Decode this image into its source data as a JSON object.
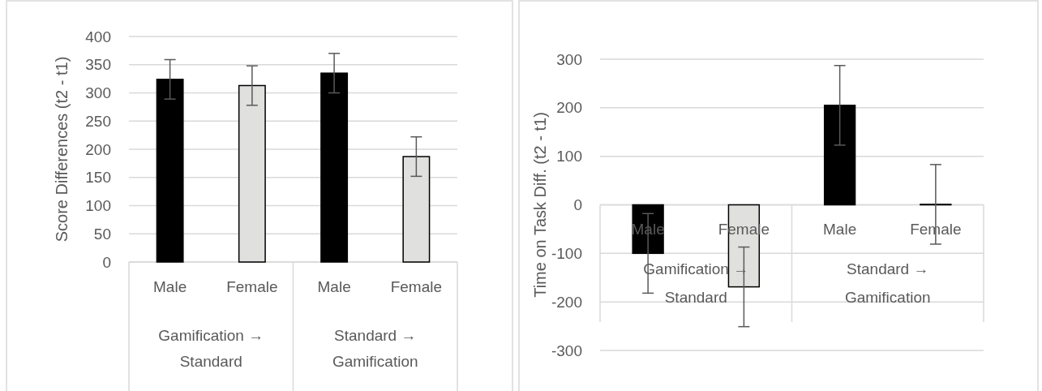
{
  "chart_data": [
    {
      "type": "bar",
      "ylabel": "Score Differences (t2 - t1)",
      "categories": [
        "Male",
        "Female",
        "Male",
        "Female"
      ],
      "values": [
        324,
        313,
        335,
        187
      ],
      "errors": [
        35,
        35,
        35,
        35
      ],
      "colors": [
        "#000000",
        "#e0e0de",
        "#000000",
        "#e0e0de"
      ],
      "ylim": [
        0,
        400
      ],
      "yticks": [
        0,
        50,
        100,
        150,
        200,
        250,
        300,
        350,
        400
      ],
      "grid": "y",
      "annotations": [
        "Gamification → Standard",
        "Standard → Gamification"
      ]
    },
    {
      "type": "bar",
      "ylabel": "Time on Task Diff. (t2 - t1)",
      "categories": [
        "Male",
        "Female",
        "Male",
        "Female"
      ],
      "values": [
        -100,
        -169,
        205,
        1
      ],
      "errors": [
        82,
        82,
        82,
        82
      ],
      "colors": [
        "#000000",
        "#e0e0de",
        "#000000",
        "#e0e0de"
      ],
      "ylim": [
        -300,
        300
      ],
      "yticks": [
        -300,
        -200,
        -100,
        0,
        100,
        200,
        300
      ],
      "grid": "y",
      "annotations": [
        "Gamification → Standard",
        "Standard → Gamification"
      ]
    }
  ]
}
